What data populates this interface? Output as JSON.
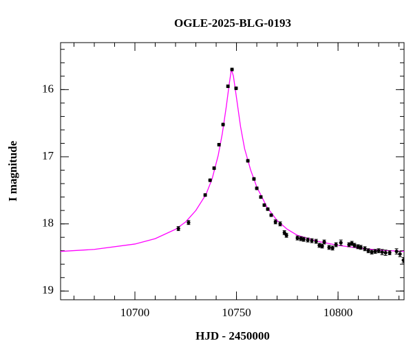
{
  "chart_data": {
    "type": "scatter",
    "title": "OGLE-2025-BLG-0193",
    "xlabel": "HJD - 2450000",
    "ylabel": "I magnitude",
    "xlim": [
      10663.4,
      10832.5
    ],
    "ylim": [
      19.13,
      15.3
    ],
    "xticks": [
      10700,
      10750,
      10800
    ],
    "yticks": [
      16,
      17,
      18,
      19
    ],
    "series": [
      {
        "type": "line",
        "color": "#ff00ff",
        "x": [
          10663.4,
          10680,
          10700,
          10710,
          10720,
          10725,
          10730,
          10735,
          10738,
          10741,
          10743,
          10745,
          10746.5,
          10747.5,
          10748.5,
          10750,
          10752,
          10754,
          10757,
          10760,
          10765,
          10770,
          10775,
          10780,
          10790,
          10800,
          10810,
          10820,
          10832.5
        ],
        "values": [
          18.41,
          18.38,
          18.3,
          18.22,
          18.08,
          17.97,
          17.8,
          17.56,
          17.33,
          16.98,
          16.66,
          16.25,
          15.9,
          15.7,
          15.8,
          16.12,
          16.55,
          16.88,
          17.2,
          17.45,
          17.75,
          17.95,
          18.08,
          18.17,
          18.26,
          18.32,
          18.36,
          18.39,
          18.41
        ]
      },
      {
        "type": "scatter",
        "color": "#000000",
        "x": [
          10721.4,
          10726.4,
          10734.6,
          10737.0,
          10739.0,
          10741.4,
          10743.4,
          10745.8,
          10747.8,
          10749.8,
          10755.6,
          10758.6,
          10760.0,
          10762.0,
          10763.7,
          10765.4,
          10767.1,
          10769.2,
          10771.5,
          10773.6,
          10774.6,
          10780.0,
          10781.7,
          10783.1,
          10785.1,
          10787.1,
          10789.2,
          10790.8,
          10792.2,
          10793.2,
          10795.6,
          10797.3,
          10799.0,
          10801.4,
          10805.4,
          10806.8,
          10808.1,
          10809.8,
          10811.2,
          10813.2,
          10814.9,
          10816.6,
          10818.3,
          10820.0,
          10821.7,
          10823.4,
          10825.4,
          10828.8,
          10830.5,
          10832.2
        ],
        "values": [
          18.07,
          17.98,
          17.57,
          17.35,
          17.17,
          16.82,
          16.52,
          15.95,
          15.7,
          15.98,
          17.06,
          17.33,
          17.47,
          17.6,
          17.72,
          17.78,
          17.87,
          17.97,
          18.0,
          18.13,
          18.17,
          18.21,
          18.22,
          18.23,
          18.24,
          18.25,
          18.26,
          18.32,
          18.33,
          18.27,
          18.35,
          18.36,
          18.31,
          18.28,
          18.31,
          18.29,
          18.32,
          18.34,
          18.35,
          18.37,
          18.4,
          18.42,
          18.41,
          18.4,
          18.42,
          18.43,
          18.43,
          18.41,
          18.45,
          18.54
        ],
        "errors": [
          0.03,
          0.03,
          0.02,
          0.02,
          0.02,
          0.02,
          0.02,
          0.02,
          0.02,
          0.02,
          0.02,
          0.02,
          0.02,
          0.02,
          0.02,
          0.02,
          0.02,
          0.03,
          0.03,
          0.03,
          0.03,
          0.03,
          0.03,
          0.03,
          0.03,
          0.03,
          0.03,
          0.03,
          0.03,
          0.03,
          0.03,
          0.03,
          0.03,
          0.04,
          0.03,
          0.03,
          0.03,
          0.03,
          0.03,
          0.03,
          0.03,
          0.03,
          0.03,
          0.03,
          0.04,
          0.04,
          0.03,
          0.04,
          0.04,
          0.04
        ]
      }
    ]
  }
}
